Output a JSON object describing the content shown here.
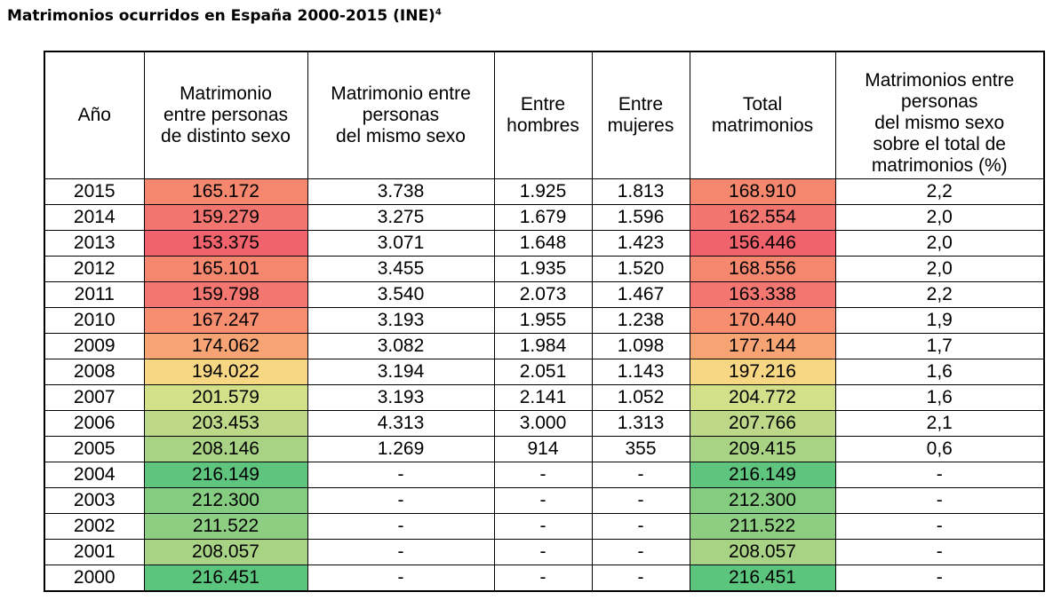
{
  "title": {
    "text": "Matrimonios ocurridos en España 2000-2015 (INE)",
    "footnote": "4"
  },
  "table": {
    "headers": [
      "Año",
      "Matrimonio\nentre personas\nde distinto sexo",
      "Matrimonio entre\npersonas\ndel mismo sexo",
      "Entre\nhombres",
      "Entre\nmujeres",
      "Total\nmatrimonios",
      "Matrimonios entre\npersonas\ndel mismo sexo\nsobre el total de\nmatrimonios (%)"
    ],
    "rows": [
      {
        "year": "2015",
        "distinto": "165.172",
        "mismo": "3.738",
        "hombres": "1.925",
        "mujeres": "1.813",
        "total": "168.910",
        "pct": "2,2",
        "color_distinto": "#f5876e",
        "color_total": "#f5876e"
      },
      {
        "year": "2014",
        "distinto": "159.279",
        "mismo": "3.275",
        "hombres": "1.679",
        "mujeres": "1.596",
        "total": "162.554",
        "pct": "2,0",
        "color_distinto": "#f37570",
        "color_total": "#f37570"
      },
      {
        "year": "2013",
        "distinto": "153.375",
        "mismo": "3.071",
        "hombres": "1.648",
        "mujeres": "1.423",
        "total": "156.446",
        "pct": "2,0",
        "color_distinto": "#f0626c",
        "color_total": "#f0626c"
      },
      {
        "year": "2012",
        "distinto": "165.101",
        "mismo": "3.455",
        "hombres": "1.935",
        "mujeres": "1.520",
        "total": "168.556",
        "pct": "2,0",
        "color_distinto": "#f5876e",
        "color_total": "#f5876e"
      },
      {
        "year": "2011",
        "distinto": "159.798",
        "mismo": "3.540",
        "hombres": "2.073",
        "mujeres": "1.467",
        "total": "163.338",
        "pct": "2,2",
        "color_distinto": "#f37770",
        "color_total": "#f37770"
      },
      {
        "year": "2010",
        "distinto": "167.247",
        "mismo": "3.193",
        "hombres": "1.955",
        "mujeres": "1.238",
        "total": "170.440",
        "pct": "1,9",
        "color_distinto": "#f68e6f",
        "color_total": "#f68e6f"
      },
      {
        "year": "2009",
        "distinto": "174.062",
        "mismo": "3.082",
        "hombres": "1.984",
        "mujeres": "1.098",
        "total": "177.144",
        "pct": "1,7",
        "color_distinto": "#f7a474",
        "color_total": "#f7a474"
      },
      {
        "year": "2008",
        "distinto": "194.022",
        "mismo": "3.194",
        "hombres": "2.051",
        "mujeres": "1.143",
        "total": "197.216",
        "pct": "1,6",
        "color_distinto": "#f8d784",
        "color_total": "#f8d784"
      },
      {
        "year": "2007",
        "distinto": "201.579",
        "mismo": "3.193",
        "hombres": "2.141",
        "mujeres": "1.052",
        "total": "204.772",
        "pct": "1,6",
        "color_distinto": "#d3e08a",
        "color_total": "#d3e08a"
      },
      {
        "year": "2006",
        "distinto": "203.453",
        "mismo": "4.313",
        "hombres": "3.000",
        "mujeres": "1.313",
        "total": "207.766",
        "pct": "2,1",
        "color_distinto": "#bcd888",
        "color_total": "#bcd888"
      },
      {
        "year": "2005",
        "distinto": "208.146",
        "mismo": "1.269",
        "hombres": "914",
        "mujeres": "355",
        "total": "209.415",
        "pct": "0,6",
        "color_distinto": "#a8d284",
        "color_total": "#a8d284"
      },
      {
        "year": "2004",
        "distinto": "216.149",
        "mismo": "-",
        "hombres": "-",
        "mujeres": "-",
        "total": "216.149",
        "pct": "-",
        "color_distinto": "#5ec47e",
        "color_total": "#5ec47e"
      },
      {
        "year": "2003",
        "distinto": "212.300",
        "mismo": "-",
        "hombres": "-",
        "mujeres": "-",
        "total": "212.300",
        "pct": "-",
        "color_distinto": "#84cc80",
        "color_total": "#84cc80"
      },
      {
        "year": "2002",
        "distinto": "211.522",
        "mismo": "-",
        "hombres": "-",
        "mujeres": "-",
        "total": "211.522",
        "pct": "-",
        "color_distinto": "#8ece82",
        "color_total": "#8ece82"
      },
      {
        "year": "2001",
        "distinto": "208.057",
        "mismo": "-",
        "hombres": "-",
        "mujeres": "-",
        "total": "208.057",
        "pct": "-",
        "color_distinto": "#a8d384",
        "color_total": "#a8d384"
      },
      {
        "year": "2000",
        "distinto": "216.451",
        "mismo": "-",
        "hombres": "-",
        "mujeres": "-",
        "total": "216.451",
        "pct": "-",
        "color_distinto": "#5bc47d",
        "color_total": "#5bc47d"
      }
    ]
  }
}
